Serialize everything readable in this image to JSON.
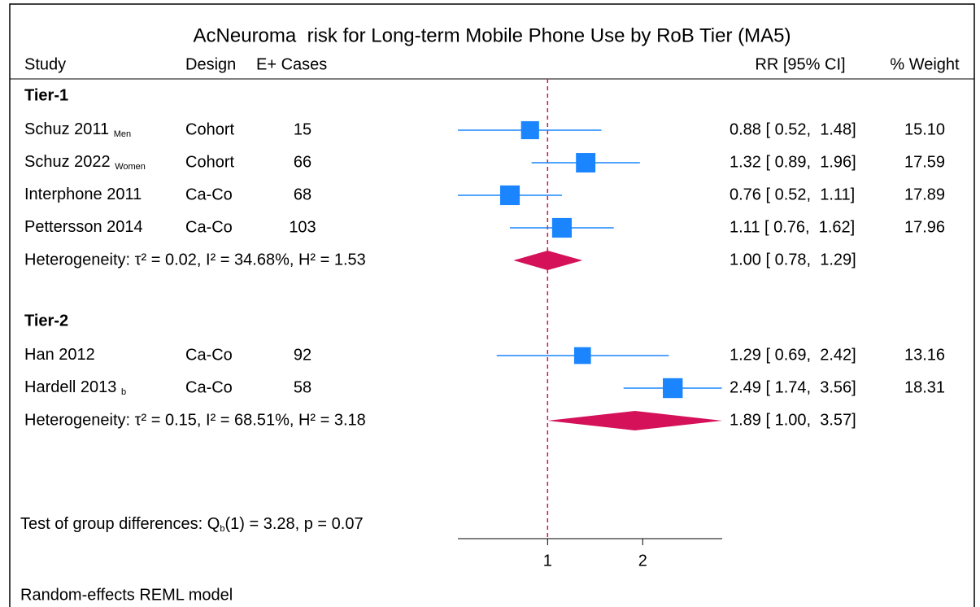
{
  "chart_data": {
    "type": "forest",
    "title": "AcNeuroma  risk for Long-term Mobile Phone Use by RoB Tier (MA5)",
    "columns": [
      "Study",
      "Design",
      "E+ Cases",
      "RR [95% CI]",
      "% Weight"
    ],
    "groups": [
      {
        "name": "Tier-1",
        "studies": [
          {
            "study": "Schuz 2011",
            "subscript": "Men",
            "design": "Cohort",
            "cases": 15,
            "rr": 0.88,
            "lo": 0.52,
            "hi": 1.48,
            "ci_label": "0.88 [ 0.52,  1.48]",
            "weight": 15.1,
            "weight_label": "15.10"
          },
          {
            "study": "Schuz 2022",
            "subscript": "Women",
            "design": "Cohort",
            "cases": 66,
            "rr": 1.32,
            "lo": 0.89,
            "hi": 1.96,
            "ci_label": "1.32 [ 0.89,  1.96]",
            "weight": 17.59,
            "weight_label": "17.59"
          },
          {
            "study": "Interphone 2011",
            "subscript": null,
            "design": "Ca-Co",
            "cases": 68,
            "rr": 0.76,
            "lo": 0.52,
            "hi": 1.11,
            "ci_label": "0.76 [ 0.52,  1.11]",
            "weight": 17.89,
            "weight_label": "17.89"
          },
          {
            "study": "Pettersson 2014",
            "subscript": null,
            "design": "Ca-Co",
            "cases": 103,
            "rr": 1.11,
            "lo": 0.76,
            "hi": 1.62,
            "ci_label": "1.11 [ 0.76,  1.62]",
            "weight": 17.96,
            "weight_label": "17.96"
          }
        ],
        "heterogeneity": "Heterogeneity: τ² = 0.02, I² = 34.68%, H² = 1.53",
        "summary": {
          "rr": 1.0,
          "lo": 0.78,
          "hi": 1.29,
          "ci_label": "1.00 [ 0.78,  1.29]"
        }
      },
      {
        "name": "Tier-2",
        "studies": [
          {
            "study": "Han 2012",
            "subscript": null,
            "design": "Ca-Co",
            "cases": 92,
            "rr": 1.29,
            "lo": 0.69,
            "hi": 2.42,
            "ci_label": "1.29 [ 0.69,  2.42]",
            "weight": 13.16,
            "weight_label": "13.16"
          },
          {
            "study": "Hardell 2013",
            "subscript": "b",
            "design": "Ca-Co",
            "cases": 58,
            "rr": 2.49,
            "lo": 1.74,
            "hi": 3.56,
            "ci_label": "2.49 [ 1.74,  3.56]",
            "weight": 18.31,
            "weight_label": "18.31"
          }
        ],
        "heterogeneity": "Heterogeneity: τ² = 0.15, I² = 68.51%, H² = 3.18",
        "summary": {
          "rr": 1.89,
          "lo": 1.0,
          "hi": 3.57,
          "ci_label": "1.89 [ 1.00,  3.57]"
        }
      }
    ],
    "test": {
      "prefix": "Test of group differences: Q",
      "subscript": "b",
      "rest": "(1) = 3.28, p = 0.07"
    },
    "footer": "Random-effects REML model",
    "log_scale": true,
    "xlim": [
      0.52,
      3.57
    ],
    "xticks": [
      1,
      2
    ],
    "reference": 1,
    "marker_color": "#1a85ff",
    "summary_color": "#d41159",
    "reference_color": "#d41159"
  }
}
